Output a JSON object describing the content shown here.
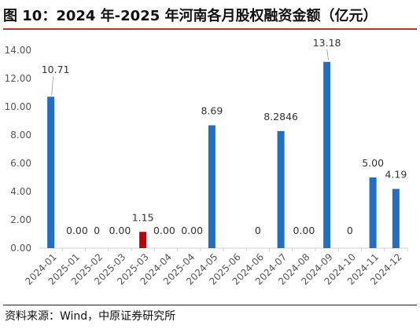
{
  "title": "图 10：2024 年-2025 年河南各月股权融资金额（亿元）",
  "source": "资料来源：Wind，中原证券研究所",
  "colors": {
    "primary": "#1f6fc5",
    "highlight": "#c00000",
    "axis": "#d0d0d0",
    "text": "#555555",
    "title_rule": "#b33333"
  },
  "chart_data": {
    "type": "bar",
    "title": "图 10：2024 年-2025 年河南各月股权融资金额（亿元）",
    "xlabel": "",
    "ylabel": "",
    "ylim": [
      0,
      14
    ],
    "yticks": [
      "0.00",
      "2.00",
      "4.00",
      "6.00",
      "8.00",
      "10.00",
      "12.00",
      "14.00"
    ],
    "grid": false,
    "categories": [
      "2024-01",
      "2025-01",
      "2025-02",
      "2025-03",
      "2025-03",
      "2024-04",
      "2025-04",
      "2024-05",
      "2025-06",
      "2024-06",
      "2024-07",
      "2024-08",
      "2024-09",
      "2024-10",
      "2024-11",
      "2024-12"
    ],
    "values": [
      10.71,
      0,
      0,
      0,
      1.15,
      0,
      0,
      8.69,
      0,
      0,
      8.2846,
      0,
      13.18,
      0,
      5.0,
      4.19
    ],
    "data_labels": [
      "10.71",
      "0.00",
      "0",
      "0.00",
      "1.15",
      "0.00",
      "0.00",
      "8.69",
      "",
      "0",
      "8.2846",
      "0.00",
      "13.18",
      "0",
      "5.00",
      "4.19"
    ],
    "highlight_index": 4
  }
}
